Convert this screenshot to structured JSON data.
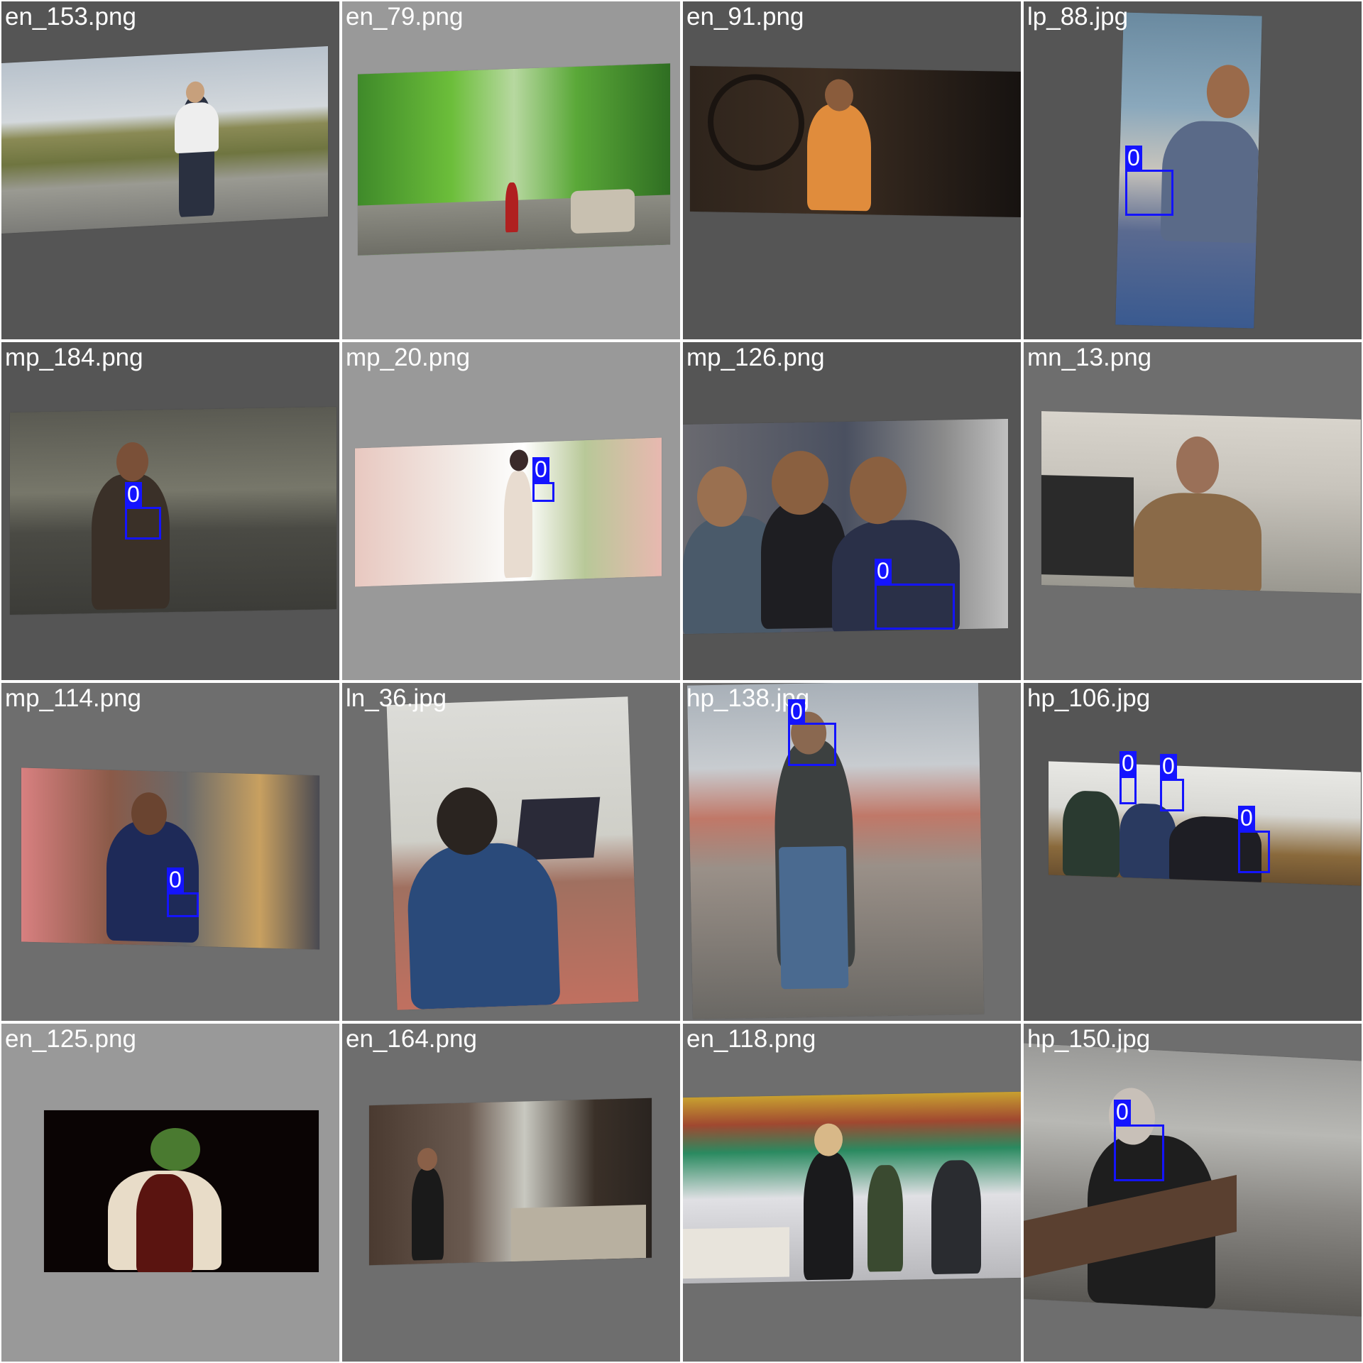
{
  "colors": {
    "box": "#1414ff",
    "label_text": "#ffffff",
    "bg_dark": "#555555",
    "bg_light": "#999999",
    "bg_mid": "#6e6e6e"
  },
  "tiles": [
    {
      "filename": "en_153.png",
      "labels": []
    },
    {
      "filename": "en_79.png",
      "labels": []
    },
    {
      "filename": "en_91.png",
      "labels": []
    },
    {
      "filename": "lp_88.jpg",
      "labels": [
        "0"
      ]
    },
    {
      "filename": "mp_184.png",
      "labels": [
        "0"
      ]
    },
    {
      "filename": "mp_20.png",
      "labels": [
        "0"
      ]
    },
    {
      "filename": "mp_126.png",
      "labels": [
        "0"
      ]
    },
    {
      "filename": "mn_13.png",
      "labels": []
    },
    {
      "filename": "mp_114.png",
      "labels": [
        "0"
      ]
    },
    {
      "filename": "ln_36.jpg",
      "labels": []
    },
    {
      "filename": "hp_138.jpg",
      "labels": [
        "0"
      ]
    },
    {
      "filename": "hp_106.jpg",
      "labels": [
        "0",
        "0",
        "0"
      ]
    },
    {
      "filename": "en_125.png",
      "labels": []
    },
    {
      "filename": "en_164.png",
      "labels": []
    },
    {
      "filename": "en_118.png",
      "labels": []
    },
    {
      "filename": "hp_150.jpg",
      "labels": [
        "0"
      ]
    }
  ]
}
